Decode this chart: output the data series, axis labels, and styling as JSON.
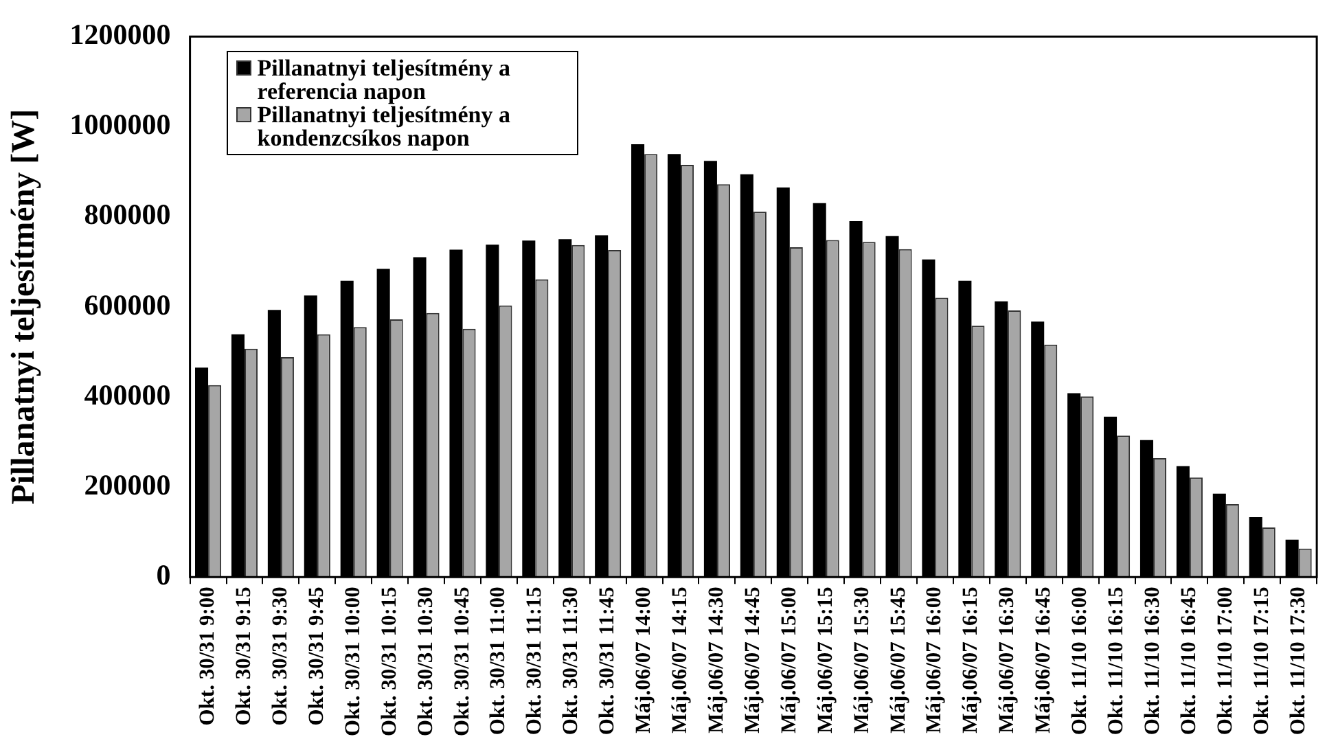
{
  "chart_data": {
    "type": "bar",
    "ylabel": "Pillanatnyi teljesítmény [W]",
    "categories": [
      "Okt. 30/31 9:00",
      "Okt. 30/31 9:15",
      "Okt. 30/31 9:30",
      "Okt. 30/31 9:45",
      "Okt. 30/31 10:00",
      "Okt. 30/31 10:15",
      "Okt. 30/31 10:30",
      "Okt. 30/31 10:45",
      "Okt. 30/31 11:00",
      "Okt. 30/31 11:15",
      "Okt. 30/31 11:30",
      "Okt. 30/31 11:45",
      "Máj.06/07 14:00",
      "Máj.06/07 14:15",
      "Máj.06/07 14:30",
      "Máj.06/07 14:45",
      "Máj.06/07 15:00",
      "Máj.06/07 15:15",
      "Máj.06/07 15:30",
      "Máj.06/07 15:45",
      "Máj.06/07 16:00",
      "Máj.06/07 16:15",
      "Máj.06/07 16:30",
      "Máj.06/07 16:45",
      "Okt. 11/10 16:00",
      "Okt. 11/10 16:15",
      "Okt. 11/10 16:30",
      "Okt. 11/10 16:45",
      "Okt. 11/10 17:00",
      "Okt. 11/10 17:15",
      "Okt. 11/10 17:30"
    ],
    "series": [
      {
        "name": "Pillanatnyi teljesítmény a referencia napon",
        "color": "#000000",
        "values": [
          465000,
          539000,
          593000,
          625000,
          658000,
          684000,
          710000,
          727000,
          738000,
          747000,
          750000,
          759000,
          961000,
          939000,
          924000,
          894000,
          865000,
          830000,
          790000,
          757000,
          705000,
          658000,
          612000,
          567000,
          408000,
          356000,
          304000,
          246000,
          185000,
          133000,
          83000
        ]
      },
      {
        "name": "Pillanatnyi teljesítmény a kondenzcsíkos napon",
        "color": "#a6a6a6",
        "values": [
          426000,
          507000,
          488000,
          539000,
          555000,
          572000,
          586000,
          551000,
          603000,
          661000,
          737000,
          726000,
          939000,
          915000,
          872000,
          811000,
          732000,
          748000,
          744000,
          728000,
          620000,
          558000,
          592000,
          516000,
          401000,
          314000,
          264000,
          221000,
          162000,
          110000,
          63000
        ]
      }
    ],
    "ylim": [
      0,
      1200000
    ],
    "yticks": [
      0,
      200000,
      400000,
      600000,
      800000,
      1000000,
      1200000
    ],
    "legend": "top left"
  }
}
